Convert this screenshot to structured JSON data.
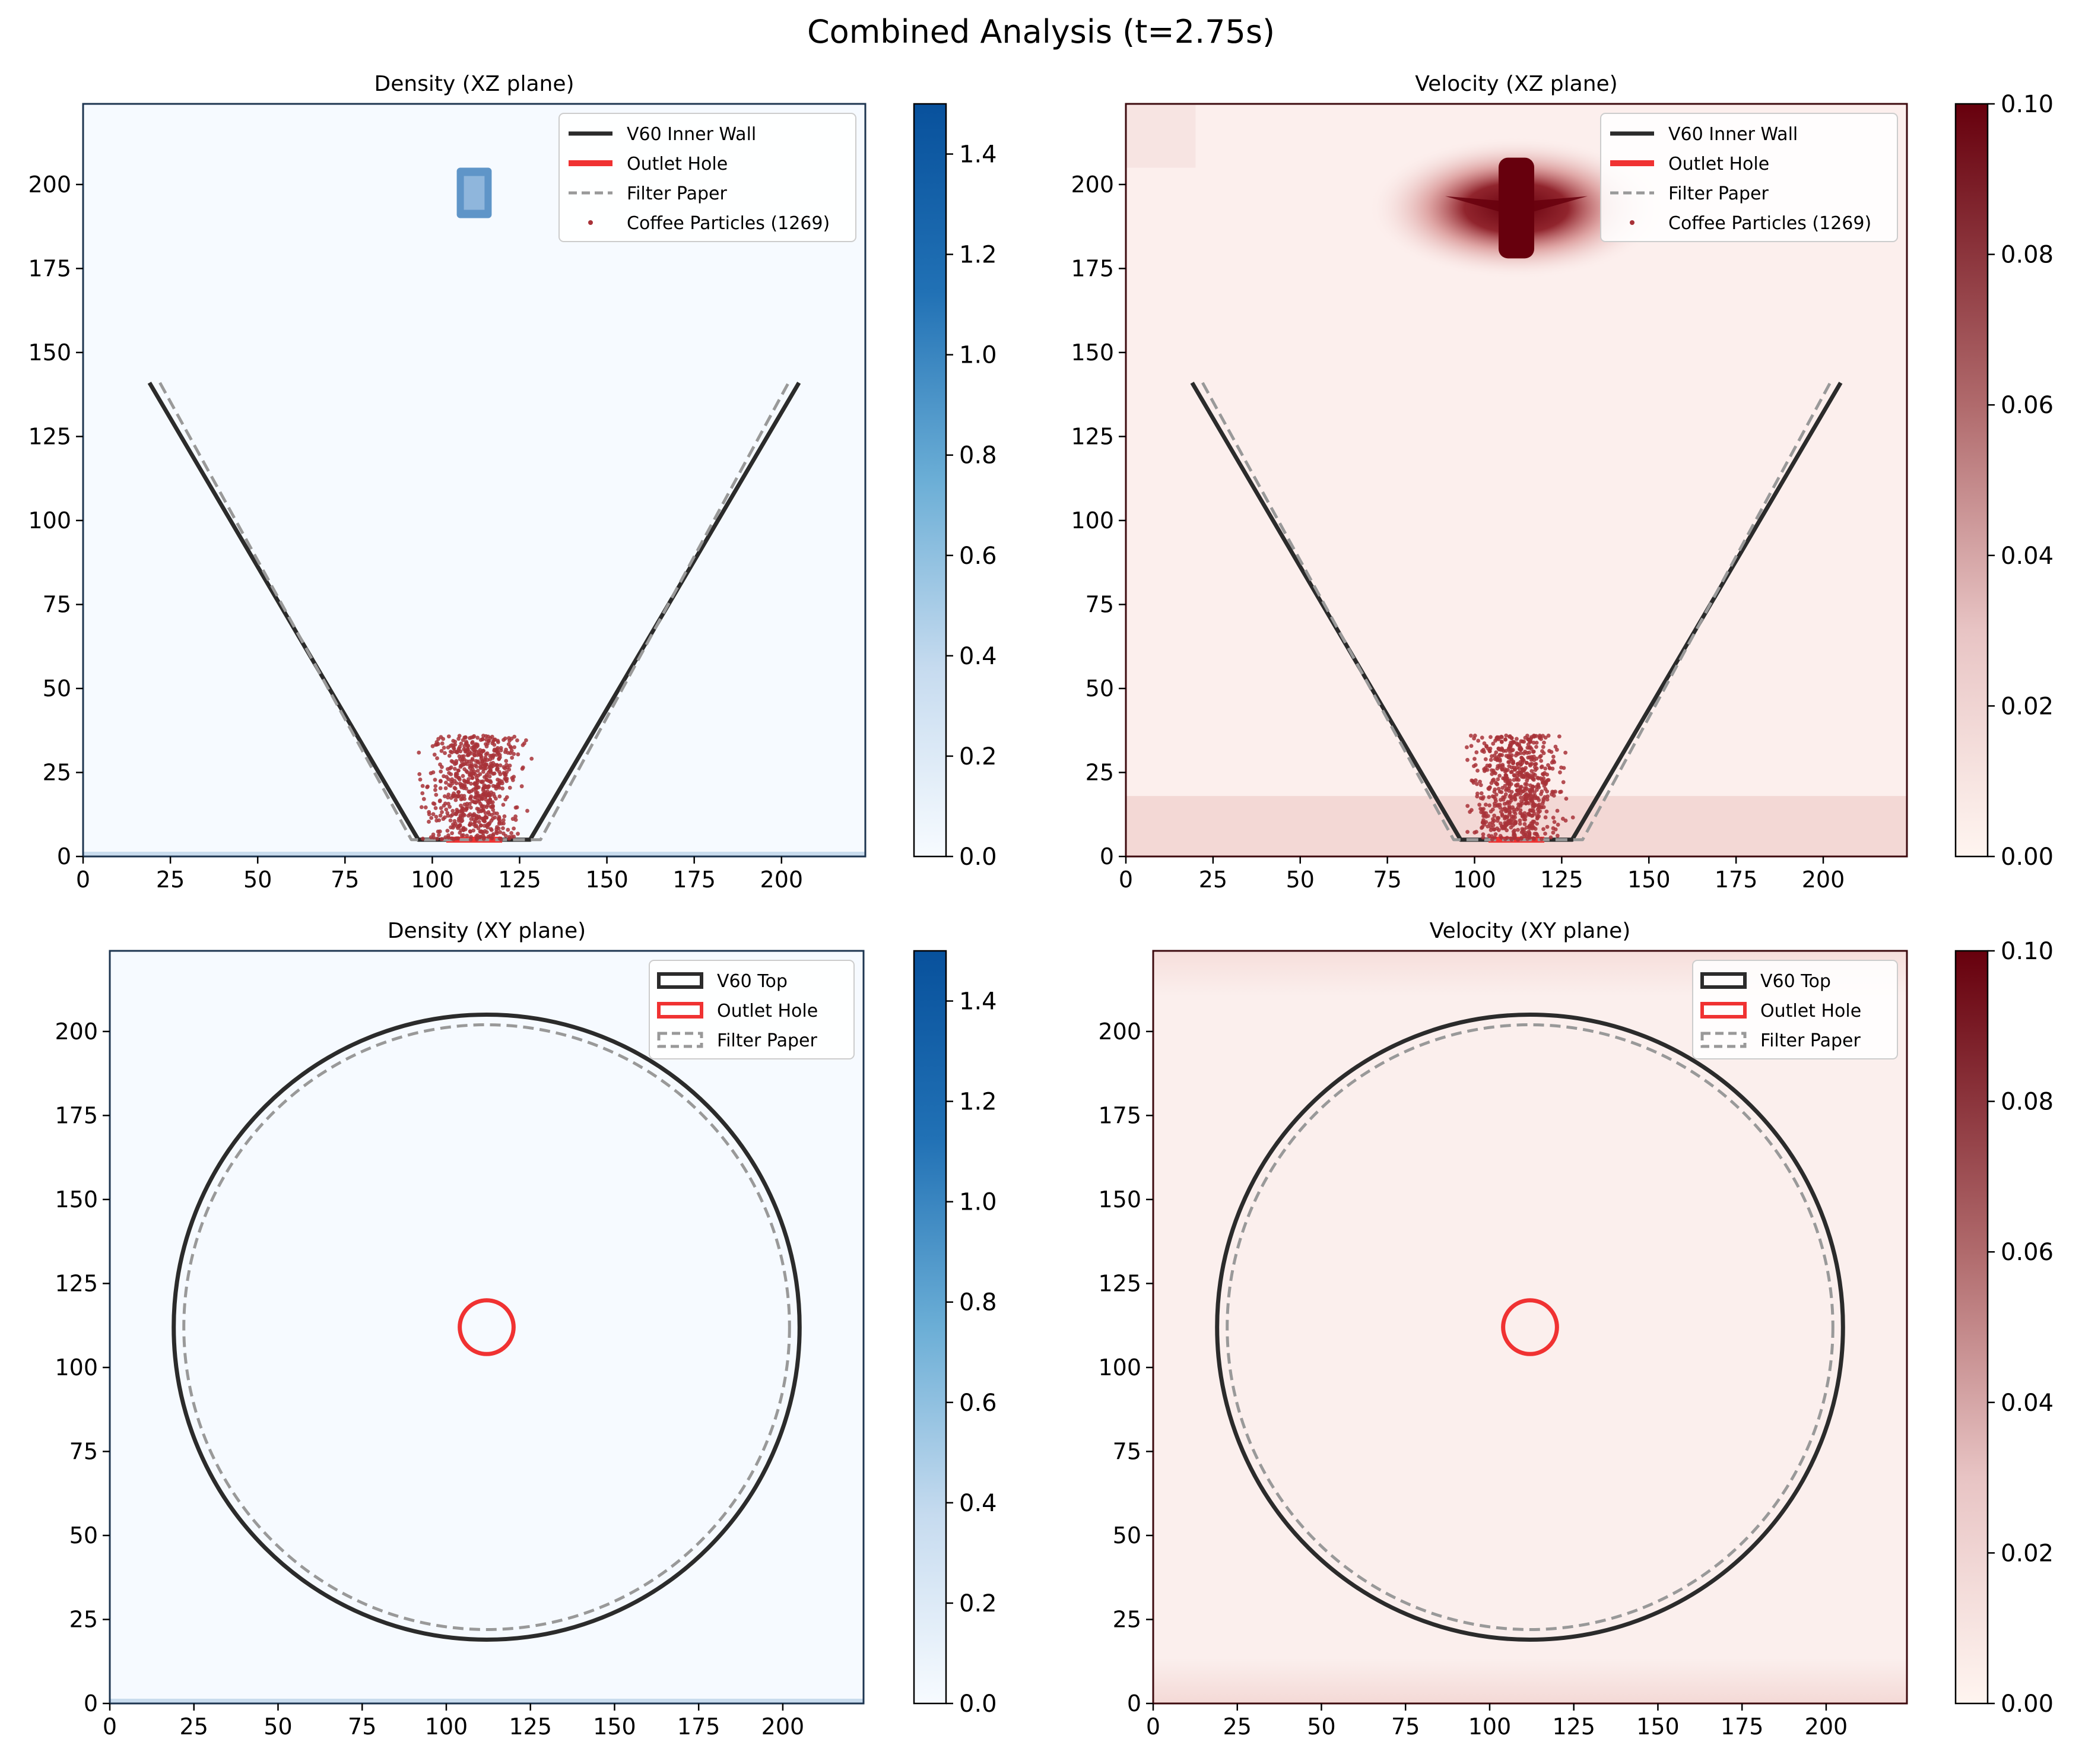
{
  "figure": {
    "title": "Combined Analysis (t=2.75s)"
  },
  "colors": {
    "wall": "#2b2b2b",
    "outlet": "#f03232",
    "filter": "#999999",
    "particles": "#a83238",
    "density_bg": "#f6faff",
    "velocity_bg": "#fcefed"
  },
  "chart_data": [
    {
      "type": "heatmap",
      "title": "Density (XZ plane)",
      "xlim": [
        0,
        224
      ],
      "ylim": [
        0,
        224
      ],
      "xticks": [
        0,
        25,
        50,
        75,
        100,
        125,
        150,
        175,
        200
      ],
      "yticks": [
        0,
        25,
        50,
        75,
        100,
        125,
        150,
        175,
        200
      ],
      "colormap": "Blues",
      "colorbar": {
        "range": [
          0,
          1.5
        ],
        "ticks": [
          "0.0",
          "0.2",
          "0.4",
          "0.6",
          "0.8",
          "1.0",
          "1.2",
          "1.4"
        ]
      },
      "legend": {
        "position": "top-right",
        "entries": [
          "V60 Inner Wall",
          "Outlet Hole",
          "Filter Paper",
          "Coffee Particles (1269)"
        ]
      },
      "series": [
        {
          "name": "V60 Inner Wall",
          "x": [
            19,
            96,
            128,
            205
          ],
          "y": [
            141,
            5,
            5,
            141
          ]
        },
        {
          "name": "Outlet Hole",
          "x": [
            104,
            120
          ],
          "y": [
            5,
            5
          ]
        },
        {
          "name": "Filter Paper",
          "x": [
            22,
            94,
            131,
            202
          ],
          "y": [
            141,
            5,
            5,
            141
          ]
        }
      ],
      "particles": {
        "count": 1269,
        "x_range": [
          94,
          130
        ],
        "y_range": [
          5,
          36
        ]
      },
      "water_blob": {
        "x_range": [
          107,
          117
        ],
        "y_range": [
          190,
          205
        ]
      }
    },
    {
      "type": "heatmap",
      "title": "Velocity (XZ plane)",
      "xlim": [
        0,
        224
      ],
      "ylim": [
        0,
        224
      ],
      "xticks": [
        0,
        25,
        50,
        75,
        100,
        125,
        150,
        175,
        200
      ],
      "yticks": [
        0,
        25,
        50,
        75,
        100,
        125,
        150,
        175,
        200
      ],
      "colormap": "Reds",
      "colorbar": {
        "range": [
          0,
          0.1
        ],
        "ticks": [
          "0.00",
          "0.02",
          "0.04",
          "0.06",
          "0.08",
          "0.10"
        ]
      },
      "legend": {
        "position": "top-right",
        "entries": [
          "V60 Inner Wall",
          "Outlet Hole",
          "Filter Paper",
          "Coffee Particles (1269)"
        ]
      },
      "series": [
        {
          "name": "V60 Inner Wall",
          "x": [
            19,
            96,
            128,
            205
          ],
          "y": [
            141,
            5,
            5,
            141
          ]
        },
        {
          "name": "Outlet Hole",
          "x": [
            104,
            120
          ],
          "y": [
            5,
            5
          ]
        },
        {
          "name": "Filter Paper",
          "x": [
            22,
            94,
            131,
            202
          ],
          "y": [
            141,
            5,
            5,
            141
          ]
        }
      ],
      "particles": {
        "count": 1269,
        "x_range": [
          94,
          130
        ],
        "y_range": [
          5,
          36
        ]
      },
      "jet": {
        "x_center": 112,
        "y_range": [
          178,
          208
        ]
      }
    },
    {
      "type": "heatmap",
      "title": "Density (XY plane)",
      "xlim": [
        0,
        224
      ],
      "ylim": [
        0,
        224
      ],
      "xticks": [
        0,
        25,
        50,
        75,
        100,
        125,
        150,
        175,
        200
      ],
      "yticks": [
        0,
        25,
        50,
        75,
        100,
        125,
        150,
        175,
        200
      ],
      "colormap": "Blues",
      "colorbar": {
        "range": [
          0,
          1.5
        ],
        "ticks": [
          "0.0",
          "0.2",
          "0.4",
          "0.6",
          "0.8",
          "1.0",
          "1.2",
          "1.4"
        ]
      },
      "legend": {
        "position": "top-right",
        "entries": [
          "V60 Top",
          "Outlet Hole",
          "Filter Paper"
        ]
      },
      "circles": [
        {
          "name": "V60 Top",
          "cx": 112,
          "cy": 112,
          "r": 93
        },
        {
          "name": "Outlet Hole",
          "cx": 112,
          "cy": 112,
          "r": 8
        },
        {
          "name": "Filter Paper",
          "cx": 112,
          "cy": 112,
          "r": 90
        }
      ]
    },
    {
      "type": "heatmap",
      "title": "Velocity (XY plane)",
      "xlim": [
        0,
        224
      ],
      "ylim": [
        0,
        224
      ],
      "xticks": [
        0,
        25,
        50,
        75,
        100,
        125,
        150,
        175,
        200
      ],
      "yticks": [
        0,
        25,
        50,
        75,
        100,
        125,
        150,
        175,
        200
      ],
      "colormap": "Reds",
      "colorbar": {
        "range": [
          0,
          0.1
        ],
        "ticks": [
          "0.00",
          "0.02",
          "0.04",
          "0.06",
          "0.08",
          "0.10"
        ]
      },
      "legend": {
        "position": "top-right",
        "entries": [
          "V60 Top",
          "Outlet Hole",
          "Filter Paper"
        ]
      },
      "circles": [
        {
          "name": "V60 Top",
          "cx": 112,
          "cy": 112,
          "r": 93
        },
        {
          "name": "Outlet Hole",
          "cx": 112,
          "cy": 112,
          "r": 8
        },
        {
          "name": "Filter Paper",
          "cx": 112,
          "cy": 112,
          "r": 90
        }
      ]
    }
  ]
}
